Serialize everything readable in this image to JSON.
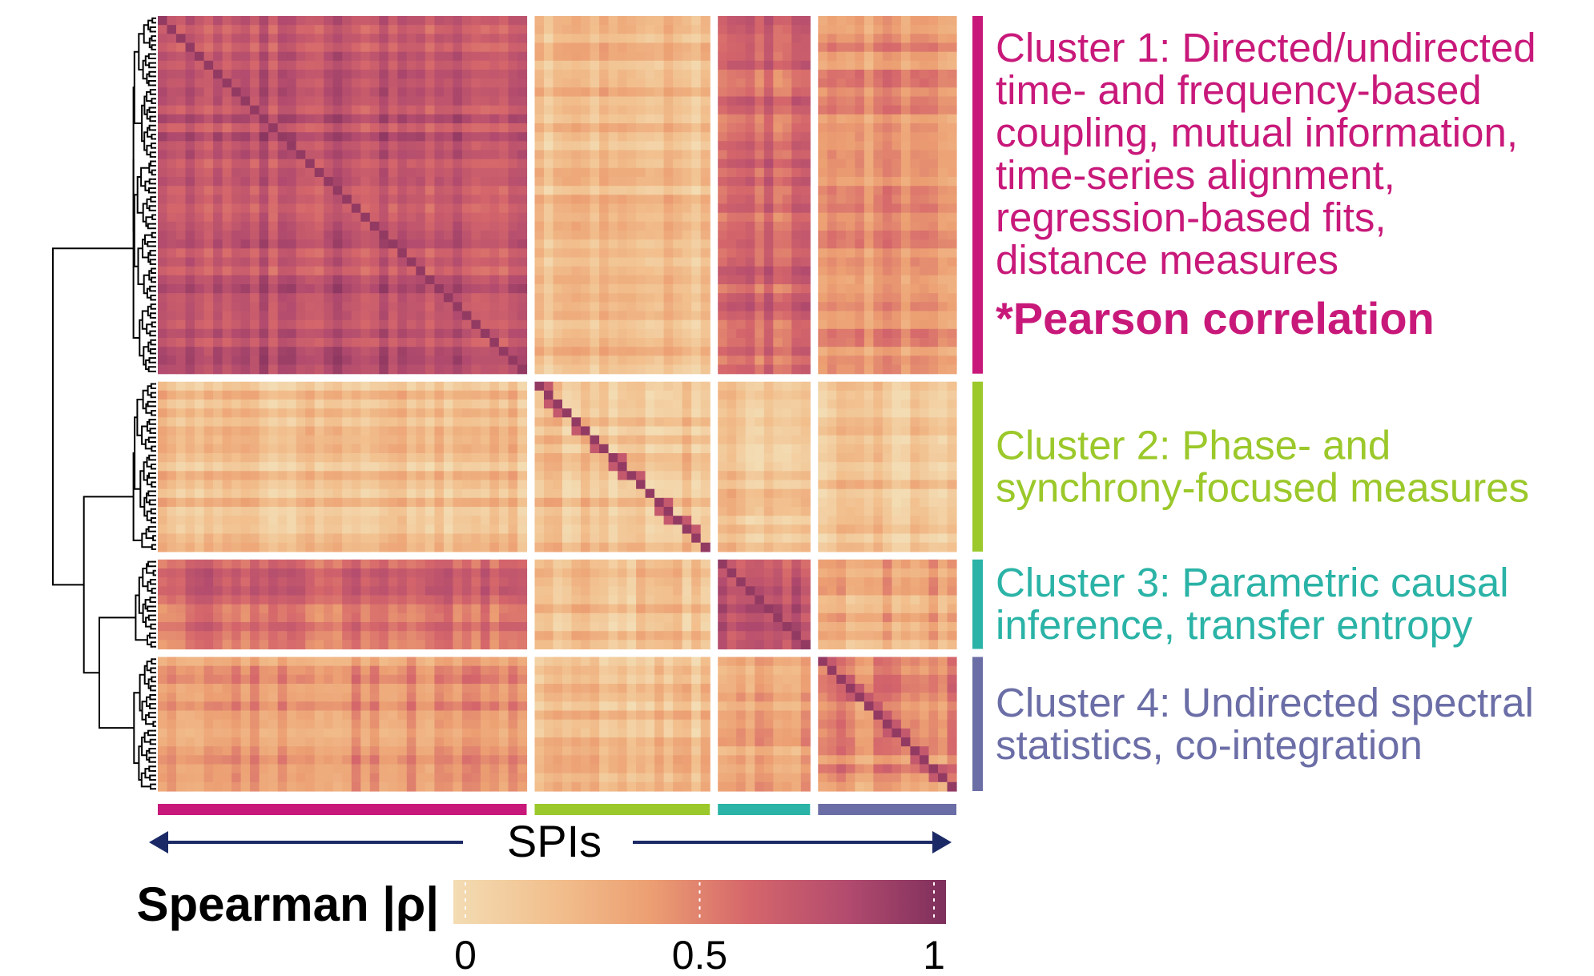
{
  "chart_data": {
    "type": "heatmap",
    "title": "",
    "xlabel": "SPIs",
    "value_range": [
      0,
      1
    ],
    "colorbar": {
      "label": "Spearman |ρ|",
      "ticks": [
        "0",
        "0.5",
        "1"
      ],
      "tick_values": [
        0,
        0.5,
        1
      ],
      "colors": [
        "#f3dcb3",
        "#f2c08e",
        "#ec9f72",
        "#d5666b",
        "#b24b6e",
        "#7e2f5c"
      ]
    },
    "clusters": [
      {
        "name": "Cluster 1",
        "label_lines": [
          "Cluster 1: Directed/undirected",
          "time- and frequency-based",
          "coupling, mutual information,",
          "time-series alignment,",
          "regression-based fits,",
          "distance measures"
        ],
        "note": "*Pearson correlation",
        "color": "#c8197a",
        "n_spis": 80
      },
      {
        "name": "Cluster 2",
        "label_lines": [
          "Cluster 2: Phase- and",
          "synchrony-focused measures"
        ],
        "color": "#9bc82a",
        "n_spis": 38
      },
      {
        "name": "Cluster 3",
        "label_lines": [
          "Cluster 3: Parametric causal",
          "inference, transfer entropy"
        ],
        "color": "#2ab3a6",
        "n_spis": 20
      },
      {
        "name": "Cluster 4",
        "label_lines": [
          "Cluster 4: Undirected spectral",
          "statistics, co-integration"
        ],
        "color": "#6b6ea6",
        "n_spis": 30
      }
    ],
    "block_mean_abs_rho": [
      [
        0.75,
        0.2,
        0.62,
        0.45
      ],
      [
        0.2,
        0.2,
        0.18,
        0.18
      ],
      [
        0.6,
        0.2,
        0.72,
        0.3
      ],
      [
        0.42,
        0.2,
        0.32,
        0.45
      ]
    ]
  }
}
